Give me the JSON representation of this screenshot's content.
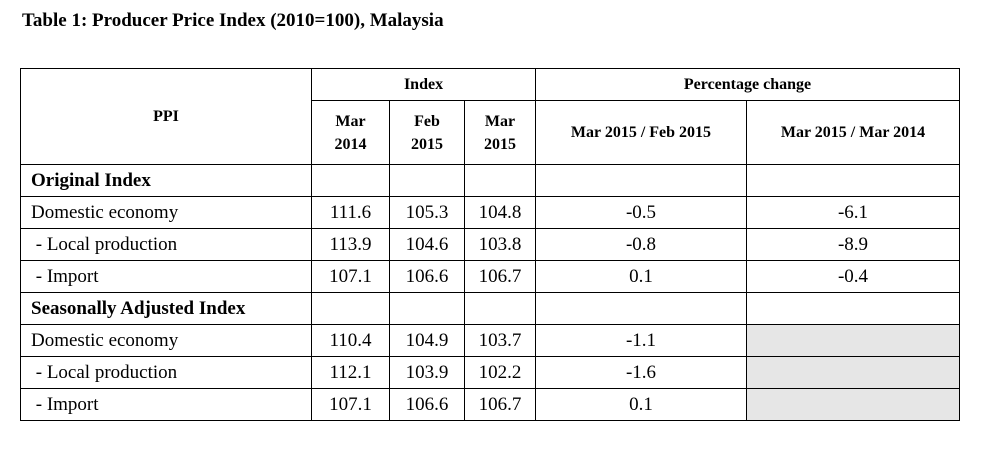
{
  "title": "Table 1: Producer Price Index (2010=100), Malaysia",
  "headers": {
    "ppi": "PPI",
    "index_group": "Index",
    "pct_group": "Percentage change",
    "index_cols": [
      {
        "line1": "Mar",
        "line2": "2014"
      },
      {
        "line1": "Feb",
        "line2": "2015"
      },
      {
        "line1": "Mar",
        "line2": "2015"
      }
    ],
    "pct_cols": [
      "Mar 2015 / Feb 2015",
      "Mar 2015 / Mar 2014"
    ]
  },
  "sections": [
    {
      "title": "Original Index",
      "rows": [
        {
          "label": "Domestic economy",
          "values": [
            "111.6",
            "105.3",
            "104.8",
            "-0.5",
            "-6.1"
          ]
        },
        {
          "label": " - Local production",
          "values": [
            "113.9",
            "104.6",
            "103.8",
            "-0.8",
            "-8.9"
          ]
        },
        {
          "label": " - Import",
          "values": [
            "107.1",
            "106.6",
            "106.7",
            "0.1",
            "-0.4"
          ]
        }
      ]
    },
    {
      "title": "Seasonally Adjusted Index",
      "rows": [
        {
          "label": "Domestic economy",
          "values": [
            "110.4",
            "104.9",
            "103.7",
            "-1.1",
            ""
          ]
        },
        {
          "label": " - Local production",
          "values": [
            "112.1",
            "103.9",
            "102.2",
            "-1.6",
            ""
          ]
        },
        {
          "label": " - Import",
          "values": [
            "107.1",
            "106.6",
            "106.7",
            "0.1",
            ""
          ]
        }
      ]
    }
  ],
  "colors": {
    "shaded_cell": "#e6e6e6",
    "border": "#000000"
  }
}
